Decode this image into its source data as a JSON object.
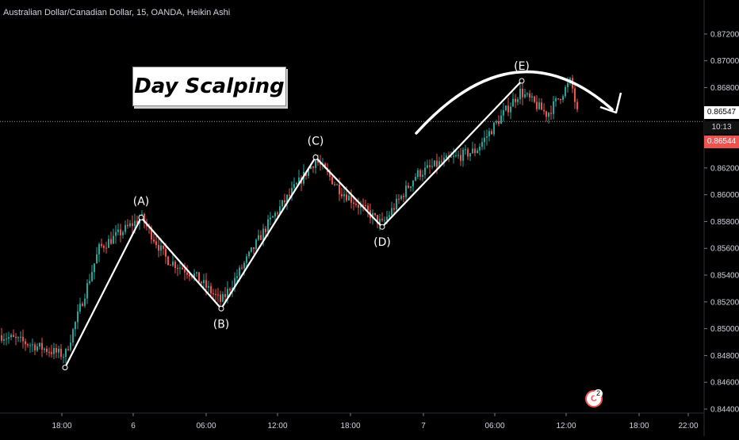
{
  "chart_data": {
    "type": "candlestick",
    "title": "Australian Dollar/Canadian Dollar, 15, OANDA, Heikin Ashi",
    "ylim": [
      0.844,
      0.873
    ],
    "y_ticks": [
      "0.87200",
      "0.87000",
      "0.86800",
      "0.86600",
      "0.86400",
      "0.86200",
      "0.86000",
      "0.85800",
      "0.85600",
      "0.85400",
      "0.85200",
      "0.85000",
      "0.84800",
      "0.84600",
      "0.84400"
    ],
    "x_ticks": [
      "18:00",
      "6",
      "06:00",
      "12:00",
      "18:00",
      "7",
      "06:00",
      "12:00",
      "18:00",
      "22:00"
    ],
    "current_price": "0.86547",
    "countdown": "10:13",
    "last_price": "0.86544",
    "colors": {
      "up": "#26a69a",
      "down": "#ef5350",
      "background": "#000000",
      "annotation": "#ffffff"
    },
    "wave_points": [
      {
        "label": "",
        "price": 0.8471
      },
      {
        "label": "(A)",
        "price": 0.8583
      },
      {
        "label": "(B)",
        "price": 0.8515
      },
      {
        "label": "(C)",
        "price": 0.8628
      },
      {
        "label": "(D)",
        "price": 0.8576
      },
      {
        "label": "(E)",
        "price": 0.8685
      }
    ],
    "annotation_text": "Day Scalping",
    "grid": false
  },
  "logo": {
    "text": "C",
    "sup": "2"
  }
}
